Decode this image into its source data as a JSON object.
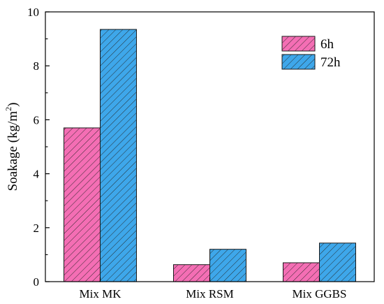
{
  "chart_data": {
    "type": "bar",
    "categories": [
      "Mix MK",
      "Mix RSM",
      "Mix GGBS"
    ],
    "series": [
      {
        "name": "6h",
        "values": [
          5.7,
          0.63,
          0.7
        ],
        "color": "#f46eb4"
      },
      {
        "name": "72h",
        "values": [
          9.35,
          1.2,
          1.43
        ],
        "color": "#3ea7ea"
      }
    ],
    "ylabel": "Soakage (kg/m",
    "ylabel_superscript": "2",
    "ylabel_suffix": ")",
    "ylim": [
      0,
      10
    ],
    "yticks": [
      "0",
      "2",
      "4",
      "6",
      "8",
      "10"
    ],
    "grid": false,
    "legend_position": "top-right",
    "bar_pattern": "diagonal-hatch"
  }
}
